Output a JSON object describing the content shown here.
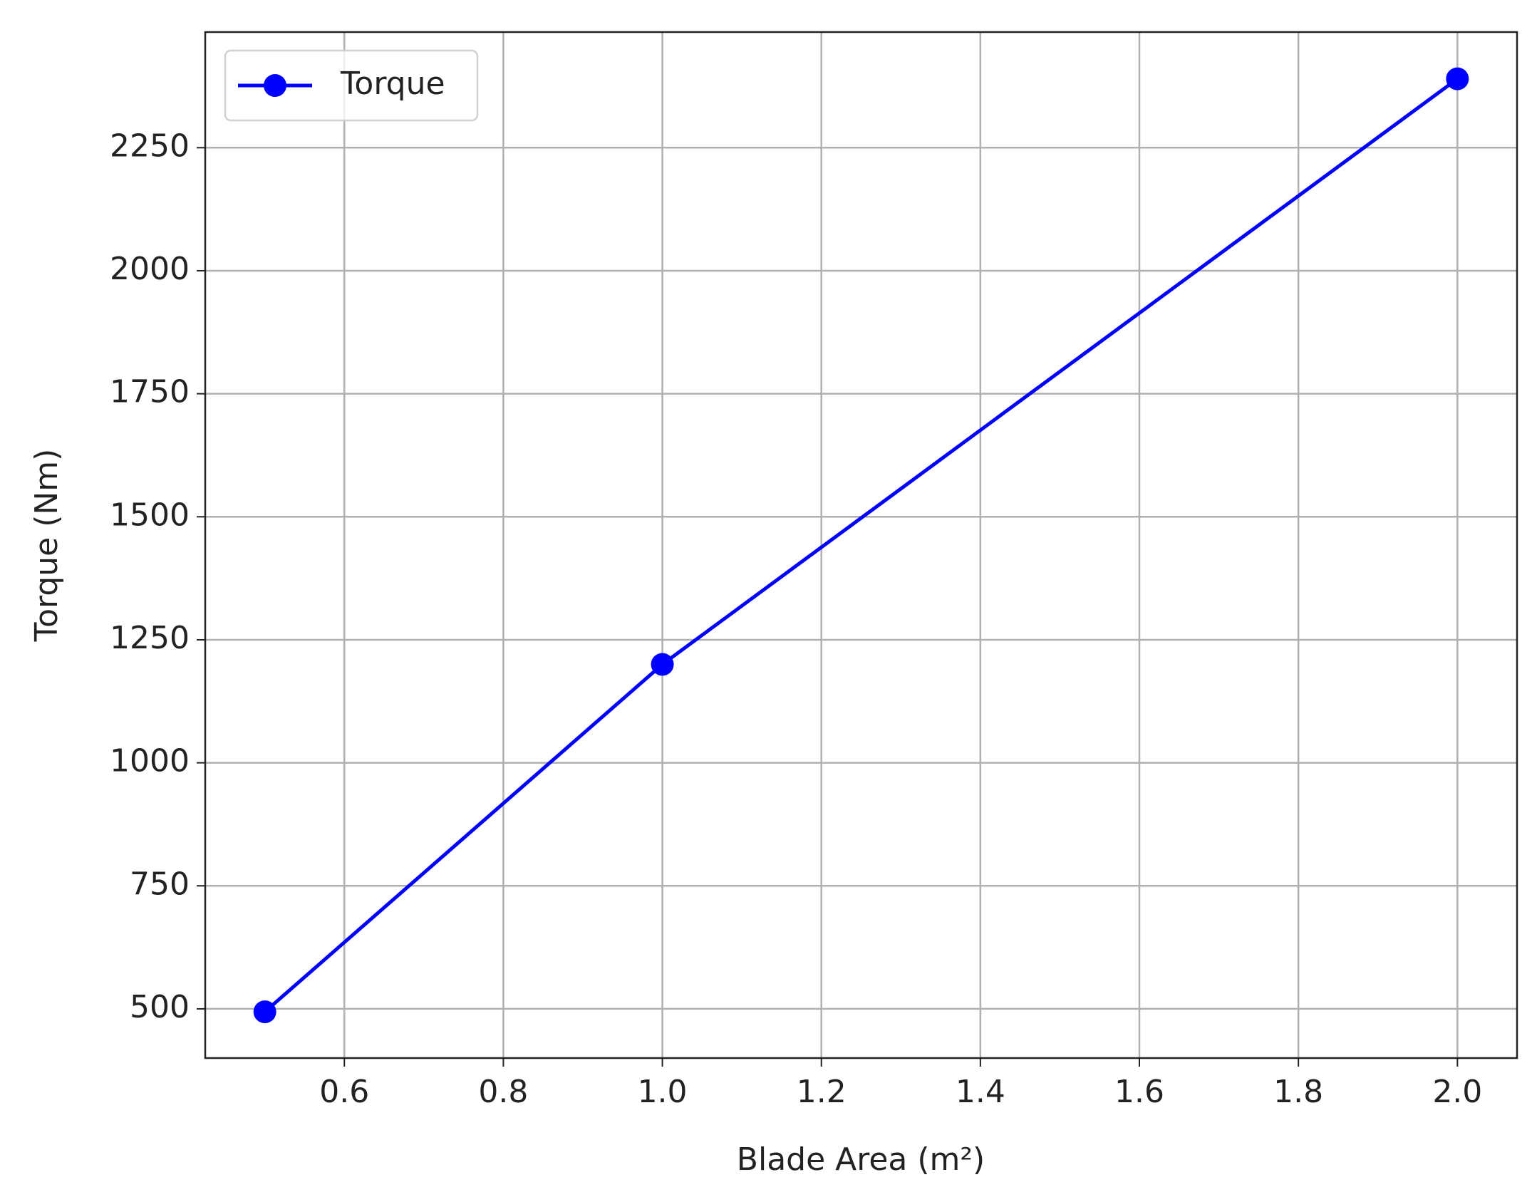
{
  "chart_data": {
    "type": "line",
    "x_label": "Blade Area (m²)",
    "y_label": "Torque (Nm)",
    "x": [
      0.5,
      1.0,
      2.0
    ],
    "series": [
      {
        "name": "Torque",
        "color": "#0000ff",
        "values": [
          494,
          1200,
          2390
        ]
      }
    ],
    "xlim": [
      0.425,
      2.075
    ],
    "xticks": [
      0.6,
      0.8,
      {
        "value": 1.0,
        "label": "1.0"
      },
      1.2,
      1.4,
      1.6,
      1.8,
      {
        "value": 2.0,
        "label": "2.0"
      }
    ],
    "ylim": [
      400,
      2485
    ],
    "yticks": [
      500,
      750,
      1000,
      1250,
      1500,
      1750,
      2000,
      2250
    ],
    "grid": true,
    "legend": "upper left"
  }
}
